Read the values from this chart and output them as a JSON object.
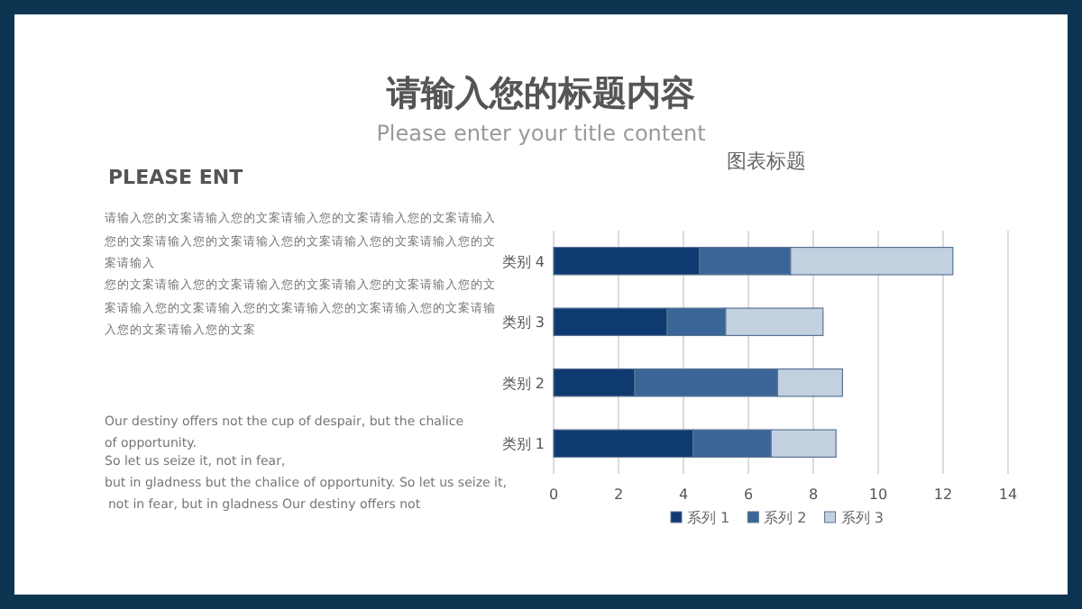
{
  "chart_data": {
    "type": "bar",
    "orientation": "horizontal",
    "stacked": true,
    "title": "请输入您的标题内容",
    "subtitle": "Please enter your title content",
    "annotations": [
      "图表标题",
      "PLEASE ENT",
      "请输入您的文案请输入您的文案请输入您的文案请输入您的文案请输入您的文案请输入您的文案请输入您的文案请输入您的文案请输入您的文案请输入",
      "您的文案请输入您的文案请输入您的文案请输入您的文案请输入您的文案请输入您的文案请输入您的文案请输入您的文案请输入您的文案请输入您的文案请输入您的文案",
      "Our destiny offers not the cup of despair, but the chalice of opportunity.",
      "So let us seize it, not in fear,",
      "but in gladness but the chalice of opportunity. So let us seize it,",
      "not in fear, but in gladness Our destiny offers not"
    ],
    "categories": [
      "类别 4",
      "类别 3",
      "类别 2",
      "类别 1"
    ],
    "series": [
      {
        "name": "系列 1",
        "color": "#0e3a70",
        "values": [
          4.5,
          3.5,
          2.5,
          4.3
        ]
      },
      {
        "name": "系列 2",
        "color": "#3a6596",
        "values": [
          2.8,
          1.8,
          4.4,
          2.4
        ]
      },
      {
        "name": "系列 3",
        "color": "#c3d0e0",
        "values": [
          5,
          3,
          2,
          2
        ]
      }
    ],
    "xlim": [
      0,
      14
    ],
    "xticks": [
      0,
      2,
      4,
      6,
      8,
      10,
      12,
      14
    ],
    "grid": "x",
    "legend": "bottom"
  }
}
